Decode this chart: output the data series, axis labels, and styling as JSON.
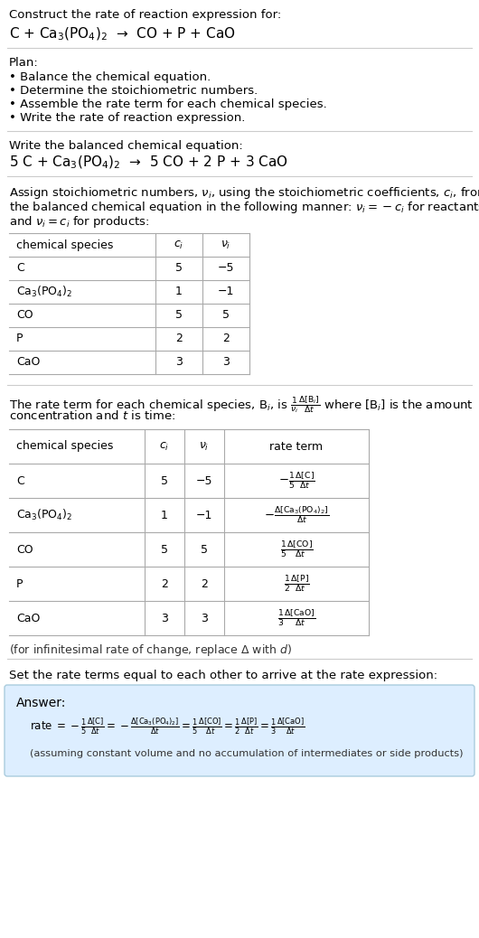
{
  "title_text": "Construct the rate of reaction expression for:",
  "reaction_unbalanced": "C + Ca$_3$(PO$_4$)$_2$  →  CO + P + CaO",
  "plan_header": "Plan:",
  "plan_items": [
    "• Balance the chemical equation.",
    "• Determine the stoichiometric numbers.",
    "• Assemble the rate term for each chemical species.",
    "• Write the rate of reaction expression."
  ],
  "balanced_header": "Write the balanced chemical equation:",
  "balanced_eq": "5 C + Ca$_3$(PO$_4$)$_2$  →  5 CO + 2 P + 3 CaO",
  "stoich_intro_lines": [
    "Assign stoichiometric numbers, $\\nu_i$, using the stoichiometric coefficients, $c_i$, from",
    "the balanced chemical equation in the following manner: $\\nu_i = -c_i$ for reactants",
    "and $\\nu_i = c_i$ for products:"
  ],
  "table1_headers": [
    "chemical species",
    "$c_i$",
    "$\\nu_i$"
  ],
  "table1_rows": [
    [
      "C",
      "5",
      "−5"
    ],
    [
      "Ca$_3$(PO$_4$)$_2$",
      "1",
      "−1"
    ],
    [
      "CO",
      "5",
      "5"
    ],
    [
      "P",
      "2",
      "2"
    ],
    [
      "CaO",
      "3",
      "3"
    ]
  ],
  "rate_term_intro_lines": [
    "The rate term for each chemical species, B$_i$, is $\\frac{1}{\\nu_i}\\frac{\\Delta[\\mathrm{B}_i]}{\\Delta t}$ where [B$_i$] is the amount",
    "concentration and $t$ is time:"
  ],
  "table2_headers": [
    "chemical species",
    "$c_i$",
    "$\\nu_i$",
    "rate term"
  ],
  "table2_rows": [
    [
      "C",
      "5",
      "−5",
      "$-\\frac{1}{5}\\frac{\\Delta[\\mathrm{C}]}{\\Delta t}$"
    ],
    [
      "Ca$_3$(PO$_4$)$_2$",
      "1",
      "−1",
      "$-\\frac{\\Delta[\\mathrm{Ca_3(PO_4)_2}]}{\\Delta t}$"
    ],
    [
      "CO",
      "5",
      "5",
      "$\\frac{1}{5}\\frac{\\Delta[\\mathrm{CO}]}{\\Delta t}$"
    ],
    [
      "P",
      "2",
      "2",
      "$\\frac{1}{2}\\frac{\\Delta[\\mathrm{P}]}{\\Delta t}$"
    ],
    [
      "CaO",
      "3",
      "3",
      "$\\frac{1}{3}\\frac{\\Delta[\\mathrm{CaO}]}{\\Delta t}$"
    ]
  ],
  "infinitesimal_note": "(for infinitesimal rate of change, replace Δ with $d$)",
  "set_equal_text": "Set the rate terms equal to each other to arrive at the rate expression:",
  "answer_label": "Answer:",
  "answer_eq": "rate $= -\\frac{1}{5}\\frac{\\Delta[\\mathrm{C}]}{\\Delta t} = -\\frac{\\Delta[\\mathrm{Ca_3(PO_4)_2}]}{\\Delta t} = \\frac{1}{5}\\frac{\\Delta[\\mathrm{CO}]}{\\Delta t} = \\frac{1}{2}\\frac{\\Delta[\\mathrm{P}]}{\\Delta t} = \\frac{1}{3}\\frac{\\Delta[\\mathrm{CaO}]}{\\Delta t}$",
  "answer_note": "(assuming constant volume and no accumulation of intermediates or side products)",
  "bg_color": "#ffffff",
  "text_color": "#000000",
  "table_border_color": "#aaaaaa",
  "answer_box_color": "#ddeeff",
  "answer_box_border": "#aaccdd",
  "separator_color": "#cccccc"
}
